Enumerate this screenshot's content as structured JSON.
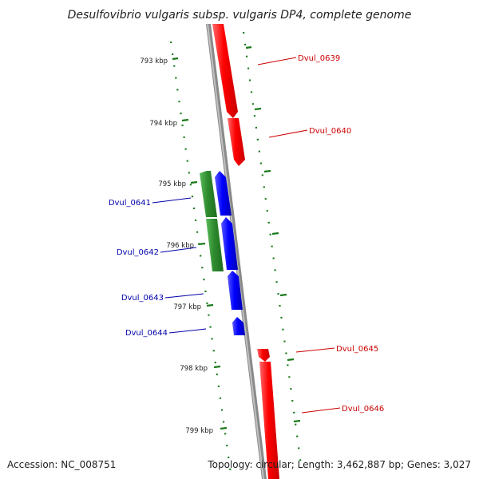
{
  "map": {
    "title": "Desulfovibrio vulgaris subsp. vulgaris DP4, complete genome",
    "accession_text": "Accession: NC_008751",
    "summary_text": "Topology: circular; Length: 3,462,887 bp; Genes: 3,027",
    "colors": {
      "backbone": "#8a8a8a",
      "forward_gene": "#ff0000",
      "reverse_gene_blue": "#0000ff",
      "reverse_gene_green": "#228b22",
      "forward_label": "#cc0000",
      "reverse_label": "#0000aa",
      "tick": "#1a7a1a"
    },
    "ticks": [
      {
        "label": "793 kbp"
      },
      {
        "label": "794 kbp"
      },
      {
        "label": "795 kbp"
      },
      {
        "label": "796 kbp"
      },
      {
        "label": "797 kbp"
      },
      {
        "label": "798 kbp"
      },
      {
        "label": "799 kbp"
      }
    ],
    "genes": [
      {
        "name": "Dvul_0639",
        "strand": "forward",
        "color": "red"
      },
      {
        "name": "Dvul_0640",
        "strand": "forward",
        "color": "red"
      },
      {
        "name": "Dvul_0641",
        "strand": "reverse",
        "color": "blue-green"
      },
      {
        "name": "Dvul_0642",
        "strand": "reverse",
        "color": "blue-green"
      },
      {
        "name": "Dvul_0643",
        "strand": "reverse",
        "color": "blue"
      },
      {
        "name": "Dvul_0644",
        "strand": "reverse",
        "color": "blue"
      },
      {
        "name": "Dvul_0645",
        "strand": "forward",
        "color": "red"
      },
      {
        "name": "Dvul_0646",
        "strand": "forward",
        "color": "red"
      }
    ]
  }
}
